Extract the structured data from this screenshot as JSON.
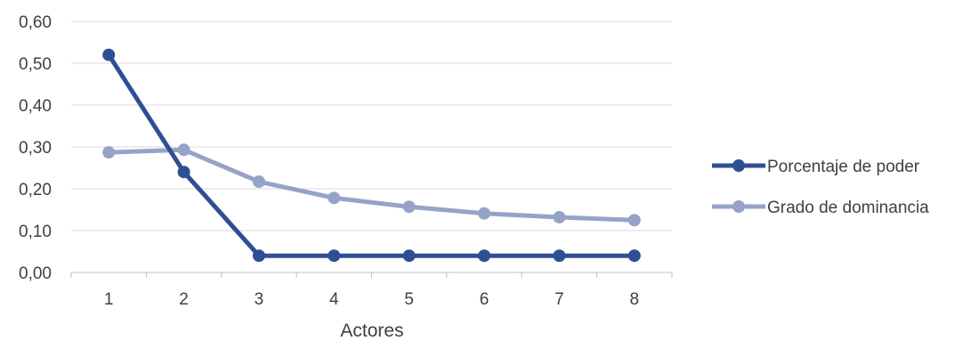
{
  "chart_data": {
    "type": "line",
    "title": "",
    "xlabel": "Actores",
    "ylabel": "",
    "categories": [
      "1",
      "2",
      "3",
      "4",
      "5",
      "6",
      "7",
      "8"
    ],
    "ylim": [
      0,
      0.6
    ],
    "yticks": [
      0,
      0.1,
      0.2,
      0.3,
      0.4,
      0.5,
      0.6
    ],
    "ytick_labels": [
      "0,00",
      "0,10",
      "0,20",
      "0,30",
      "0,40",
      "0,50",
      "0,60"
    ],
    "grid": true,
    "legend_position": "right",
    "series": [
      {
        "name": "Porcentaje de poder",
        "color": "#2F4F94",
        "values": [
          0.52,
          0.24,
          0.04,
          0.04,
          0.04,
          0.04,
          0.04,
          0.04
        ]
      },
      {
        "name": "Grado de dominancia",
        "color": "#96A3C8",
        "values": [
          0.287,
          0.293,
          0.217,
          0.178,
          0.157,
          0.141,
          0.132,
          0.125
        ]
      }
    ]
  }
}
